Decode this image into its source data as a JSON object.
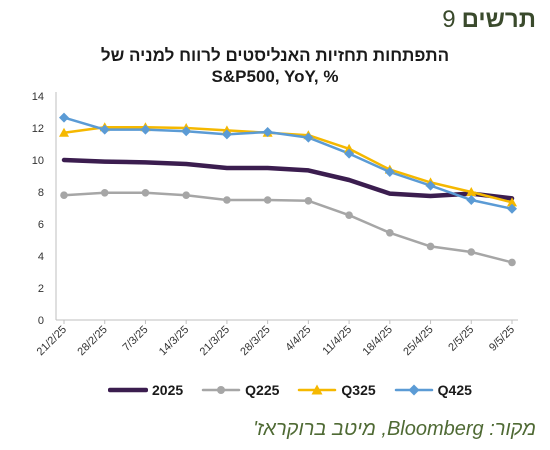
{
  "figure": {
    "label_word": "תרשים",
    "label_number": "9"
  },
  "source": "מקור: Bloomberg, מיטב ברוקראז'",
  "chart_data": {
    "type": "line",
    "title": "התפתחות תחזיות האנליסטים לרווח למניה של",
    "subtitle": "S&P500, YoY, %",
    "x": [
      "21/2/25",
      "28/2/25",
      "7/3/25",
      "14/3/25",
      "21/3/25",
      "28/3/25",
      "4/4/25",
      "11/4/25",
      "18/4/25",
      "25/4/25",
      "2/5/25",
      "9/5/25"
    ],
    "ylim": [
      0,
      14
    ],
    "yticks": [
      0,
      2,
      4,
      6,
      8,
      10,
      12,
      14
    ],
    "grid": false,
    "legend_position": "bottom",
    "series": [
      {
        "name": "2025",
        "color": "#3b1d4f",
        "marker": "none",
        "values": [
          10.0,
          9.9,
          9.85,
          9.75,
          9.5,
          9.5,
          9.35,
          8.75,
          7.9,
          7.75,
          7.9,
          7.6
        ]
      },
      {
        "name": "Q225",
        "color": "#a6a6a6",
        "marker": "circle",
        "values": [
          7.8,
          7.95,
          7.95,
          7.8,
          7.5,
          7.5,
          7.45,
          6.55,
          5.45,
          4.6,
          4.25,
          3.6
        ]
      },
      {
        "name": "Q325",
        "color": "#f5b800",
        "marker": "triangle",
        "values": [
          11.7,
          12.05,
          12.05,
          12.0,
          11.85,
          11.7,
          11.55,
          10.7,
          9.4,
          8.6,
          8.0,
          7.35
        ]
      },
      {
        "name": "Q425",
        "color": "#5b9bd5",
        "marker": "diamond",
        "values": [
          12.65,
          11.9,
          11.9,
          11.8,
          11.6,
          11.75,
          11.4,
          10.4,
          9.25,
          8.4,
          7.5,
          6.95
        ]
      }
    ]
  }
}
